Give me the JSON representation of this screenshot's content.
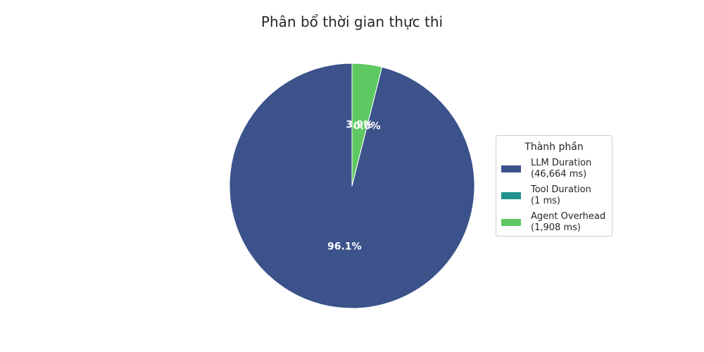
{
  "chart_data": {
    "type": "pie",
    "title": "Phân bổ thời gian thực thi",
    "legend_title": "Thành phần",
    "legend_position": "right",
    "start_angle_deg": 90,
    "direction": "counterclockwise",
    "slices": [
      {
        "label": "LLM Duration",
        "detail": "(46,664 ms)",
        "value": 46664,
        "percent_label": "96.1%",
        "color": "#3b528b"
      },
      {
        "label": "Tool Duration",
        "detail": "(1 ms)",
        "value": 1,
        "percent_label": "0.0%",
        "color": "#21918c"
      },
      {
        "label": "Agent Overhead",
        "detail": "(1,908 ms)",
        "value": 1908,
        "percent_label": "3.9%",
        "color": "#5ec962"
      }
    ]
  }
}
